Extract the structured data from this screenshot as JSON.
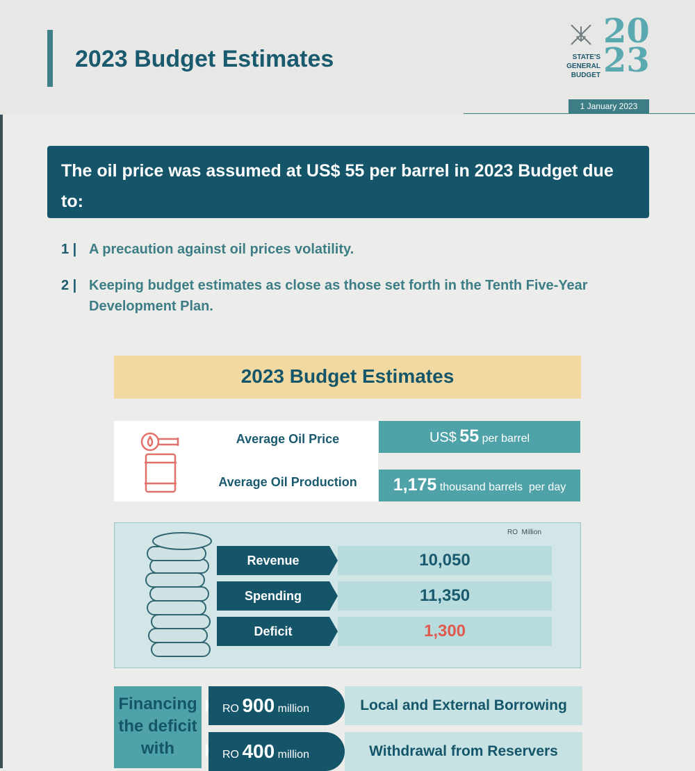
{
  "header": {
    "title": "2023 Budget Estimates",
    "logo_lines": [
      "STATE'S",
      "GENERAL",
      "BUDGET"
    ],
    "logo_year": "20\n23",
    "date": "1 January 2023"
  },
  "banner": {
    "text": "The oil price was assumed at US$ 55 per barrel in 2023 Budget due to:"
  },
  "reasons": [
    {
      "num": "1 |",
      "text": "A precaution against oil prices volatility."
    },
    {
      "num": "2 |",
      "text": "Keeping budget estimates as close as those set forth in the Tenth Five-Year Development Plan."
    }
  ],
  "estimates": {
    "heading": "2023 Budget Estimates",
    "oil_price": {
      "label": "Average Oil Price",
      "prefix": "US$",
      "value": "55",
      "unit": "per barrel"
    },
    "oil_production": {
      "label": "Average Oil Production",
      "value": "1,175",
      "unit": "thousand barrels  per day"
    },
    "unit_note": "RO  Million",
    "rows": [
      {
        "label": "Revenue",
        "value": "10,050"
      },
      {
        "label": "Spending",
        "value": "11,350"
      },
      {
        "label": "Deficit",
        "value": "1,300"
      }
    ]
  },
  "financing": {
    "label": "Financing the deficit with",
    "items": [
      {
        "prefix": "RO",
        "amount": "900",
        "unit": "million",
        "desc": "Local and External Borrowing"
      },
      {
        "prefix": "RO",
        "amount": "400",
        "unit": "million",
        "desc": "Withdrawal from Reservers"
      }
    ]
  },
  "colors": {
    "primary": "#145569",
    "teal": "#4fa3a8",
    "gold": "#f1d9a1",
    "deficit": "#e05a4e"
  },
  "icons": [
    "oil-barrel-icon",
    "coin-stack-icon",
    "state-emblem-icon"
  ]
}
